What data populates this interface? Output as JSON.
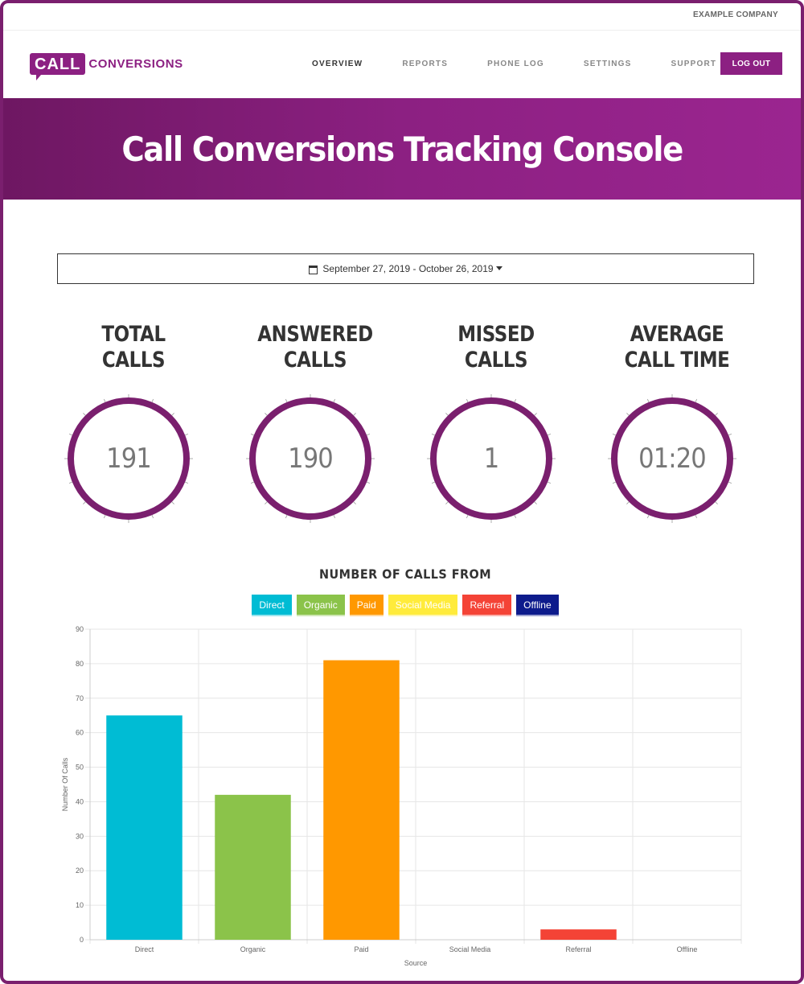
{
  "company": "EXAMPLE COMPANY",
  "logo": {
    "part1": "CALL",
    "part2": "CONVERSIONS"
  },
  "nav": {
    "items": [
      {
        "label": "OVERVIEW",
        "active": true
      },
      {
        "label": "REPORTS"
      },
      {
        "label": "PHONE LOG"
      },
      {
        "label": "SETTINGS"
      },
      {
        "label": "SUPPORT"
      }
    ],
    "logout_label": "LOG OUT"
  },
  "hero": {
    "title": "Call Conversions Tracking Console"
  },
  "date_range": {
    "icon": "calendar-icon",
    "label": "September 27, 2019 - October 26, 2019"
  },
  "stats": [
    {
      "label_line1": "TOTAL",
      "label_line2": "CALLS",
      "value": "191"
    },
    {
      "label_line1": "ANSWERED",
      "label_line2": "CALLS",
      "value": "190"
    },
    {
      "label_line1": "MISSED",
      "label_line2": "CALLS",
      "value": "1"
    },
    {
      "label_line1": "AVERAGE",
      "label_line2": "CALL TIME",
      "value": "01:20"
    }
  ],
  "colors": {
    "brand": "#8c2082",
    "ring": "#7a1f6e"
  },
  "chart_data": {
    "type": "bar",
    "title": "NUMBER OF CALLS FROM",
    "categories": [
      "Direct",
      "Organic",
      "Paid",
      "Social Media",
      "Referral",
      "Offline"
    ],
    "values": [
      65,
      42,
      81,
      0,
      3,
      0
    ],
    "colors": [
      "#00bcd4",
      "#8bc34a",
      "#ff9800",
      "#ffeb3b",
      "#f44336",
      "#0d1b8c"
    ],
    "legend": [
      "Direct",
      "Organic",
      "Paid",
      "Social Media",
      "Referral",
      "Offline"
    ],
    "xlabel": "Source",
    "ylabel": "Number Of Calls",
    "ylim": [
      0,
      90
    ],
    "yticks": [
      0,
      10,
      20,
      30,
      40,
      50,
      60,
      70,
      80,
      90
    ],
    "grid": true,
    "legend_position": "top"
  }
}
